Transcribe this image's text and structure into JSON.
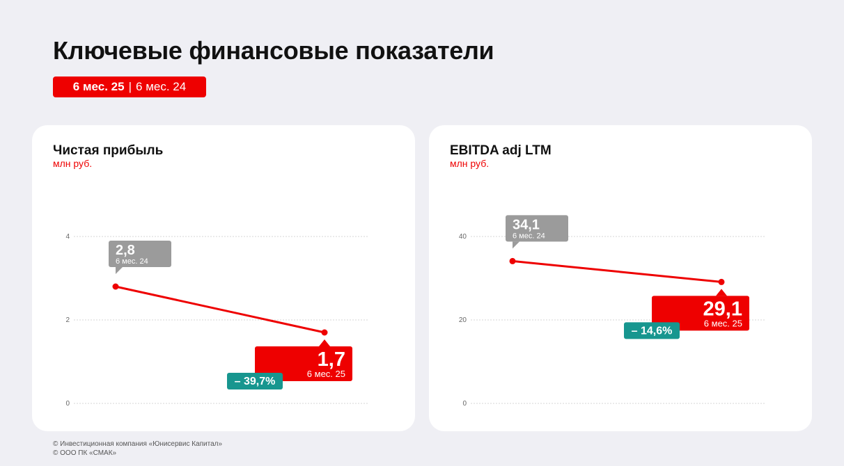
{
  "page": {
    "title": "Ключевые финансовые показатели",
    "period": {
      "current": "6 мес. 25",
      "separator": "|",
      "previous": "6 мес. 24"
    }
  },
  "colors": {
    "accent": "#ee0000",
    "previous": "#9b9b9b",
    "change": "#17968f"
  },
  "footer": {
    "line1": "© Инвестиционная компания «Юнисервис Капитал»",
    "line2": "© ООО ПК «СМАК»"
  },
  "chart_data": [
    {
      "type": "line",
      "title": "Чистая прибыль",
      "unit": "млн руб.",
      "ylim": [
        0,
        4
      ],
      "yticks": [
        "0",
        "2",
        "4"
      ],
      "grid": true,
      "points": [
        {
          "value": 2.8,
          "label": "2,8",
          "period": "6 мес. 24"
        },
        {
          "value": 1.7,
          "label": "1,7",
          "period": "6 мес. 25"
        }
      ],
      "change": "– 39,7%"
    },
    {
      "type": "line",
      "title": "EBITDA adj LTM",
      "unit": "млн руб.",
      "ylim": [
        0,
        40
      ],
      "yticks": [
        "0",
        "20",
        "40"
      ],
      "grid": true,
      "points": [
        {
          "value": 34.1,
          "label": "34,1",
          "period": "6 мес. 24"
        },
        {
          "value": 29.1,
          "label": "29,1",
          "period": "6 мес. 25"
        }
      ],
      "change": "– 14,6%"
    }
  ]
}
